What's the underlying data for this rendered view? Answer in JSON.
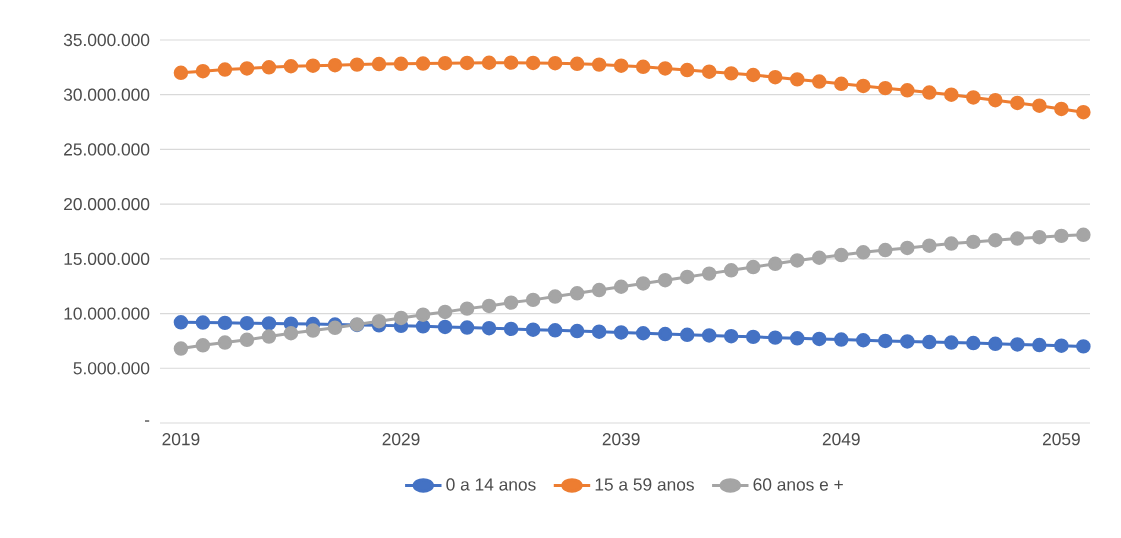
{
  "chart_data": {
    "type": "line",
    "x": [
      2019,
      2020,
      2021,
      2022,
      2023,
      2024,
      2025,
      2026,
      2027,
      2028,
      2029,
      2030,
      2031,
      2032,
      2033,
      2034,
      2035,
      2036,
      2037,
      2038,
      2039,
      2040,
      2041,
      2042,
      2043,
      2044,
      2045,
      2046,
      2047,
      2048,
      2049,
      2050,
      2051,
      2052,
      2053,
      2054,
      2055,
      2056,
      2057,
      2058,
      2059,
      2060
    ],
    "series": [
      {
        "name": "0 a 14 anos",
        "color": "#4472c4",
        "values": [
          9200000,
          9180000,
          9150000,
          9120000,
          9100000,
          9070000,
          9040000,
          9000000,
          8960000,
          8920000,
          8880000,
          8830000,
          8780000,
          8720000,
          8660000,
          8600000,
          8530000,
          8470000,
          8400000,
          8340000,
          8270000,
          8200000,
          8130000,
          8060000,
          8000000,
          7930000,
          7870000,
          7800000,
          7740000,
          7680000,
          7620000,
          7560000,
          7500000,
          7450000,
          7400000,
          7350000,
          7300000,
          7240000,
          7180000,
          7120000,
          7060000,
          7000000
        ]
      },
      {
        "name": "15 a 59 anos",
        "color": "#ed7d31",
        "values": [
          32000000,
          32150000,
          32300000,
          32400000,
          32500000,
          32600000,
          32650000,
          32700000,
          32750000,
          32800000,
          32820000,
          32850000,
          32880000,
          32900000,
          32920000,
          32930000,
          32900000,
          32880000,
          32820000,
          32750000,
          32650000,
          32550000,
          32400000,
          32250000,
          32100000,
          31950000,
          31800000,
          31600000,
          31400000,
          31200000,
          31000000,
          30800000,
          30600000,
          30400000,
          30200000,
          30000000,
          29750000,
          29500000,
          29250000,
          29000000,
          28700000,
          28400000
        ]
      },
      {
        "name": "60 anos e +",
        "color": "#a5a5a5",
        "values": [
          6800000,
          7100000,
          7350000,
          7600000,
          7900000,
          8200000,
          8450000,
          8700000,
          9000000,
          9300000,
          9600000,
          9900000,
          10150000,
          10450000,
          10700000,
          11000000,
          11250000,
          11550000,
          11850000,
          12150000,
          12450000,
          12750000,
          13050000,
          13350000,
          13650000,
          13950000,
          14250000,
          14550000,
          14850000,
          15100000,
          15350000,
          15600000,
          15800000,
          16000000,
          16200000,
          16400000,
          16550000,
          16700000,
          16850000,
          16980000,
          17100000,
          17200000
        ]
      }
    ],
    "xlim": [
      2018.05,
      2060.3
    ],
    "xticks": [
      2019,
      2029,
      2039,
      2049,
      2059
    ],
    "ylim": [
      0,
      35000000
    ],
    "yticks": [
      {
        "value": 0,
        "label": "-"
      },
      {
        "value": 5000000,
        "label": "5.000.000"
      },
      {
        "value": 10000000,
        "label": "10.000.000"
      },
      {
        "value": 15000000,
        "label": "15.000.000"
      },
      {
        "value": 20000000,
        "label": "20.000.000"
      },
      {
        "value": 25000000,
        "label": "25.000.000"
      },
      {
        "value": 30000000,
        "label": "30.000.000"
      },
      {
        "value": 35000000,
        "label": "35.000.000"
      }
    ],
    "grid": "y",
    "legend": "bottom",
    "marker": "circle",
    "line_style": "solid"
  }
}
